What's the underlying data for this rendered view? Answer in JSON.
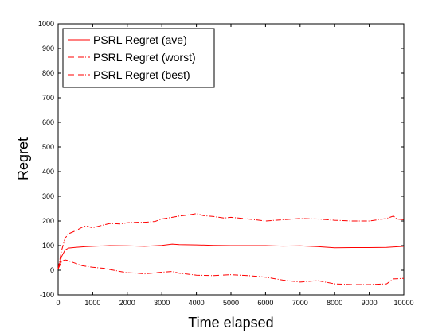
{
  "chart_data": {
    "type": "line",
    "title": "",
    "xlabel": "Time elapsed",
    "ylabel": "Regret",
    "xlim": [
      0,
      10000
    ],
    "ylim": [
      -100,
      1000
    ],
    "xticks": [
      0,
      1000,
      2000,
      3000,
      4000,
      5000,
      6000,
      7000,
      8000,
      9000,
      10000
    ],
    "yticks": [
      -100,
      0,
      100,
      200,
      300,
      400,
      500,
      600,
      700,
      800,
      900,
      1000
    ],
    "grid": false,
    "legend_position": "top-left",
    "series_color": "#ff0000",
    "series": [
      {
        "name": "PSRL Regret (ave)",
        "style": "solid",
        "x": [
          0,
          100,
          200,
          300,
          500,
          800,
          1000,
          1500,
          2000,
          2500,
          3000,
          3300,
          3500,
          4000,
          4500,
          5000,
          5500,
          6000,
          6500,
          7000,
          7500,
          8000,
          8500,
          9000,
          9500,
          10000
        ],
        "y": [
          5,
          55,
          82,
          90,
          93,
          96,
          97,
          100,
          99,
          97,
          101,
          106,
          104,
          103,
          101,
          100,
          100,
          100,
          98,
          99,
          96,
          91,
          92,
          92,
          93,
          97
        ]
      },
      {
        "name": "PSRL Regret (worst)",
        "style": "dashdot",
        "x": [
          0,
          100,
          200,
          300,
          500,
          700,
          800,
          1000,
          1200,
          1500,
          1800,
          2000,
          2300,
          2500,
          2800,
          3000,
          3300,
          3500,
          3800,
          4000,
          4200,
          4500,
          4800,
          5000,
          5500,
          6000,
          6500,
          7000,
          7500,
          8000,
          8500,
          9000,
          9500,
          9700,
          9800,
          10000
        ],
        "y": [
          5,
          80,
          130,
          148,
          160,
          175,
          180,
          172,
          180,
          190,
          188,
          193,
          195,
          195,
          198,
          208,
          215,
          220,
          225,
          230,
          222,
          218,
          212,
          215,
          208,
          200,
          205,
          210,
          208,
          203,
          200,
          200,
          210,
          220,
          208,
          205
        ]
      },
      {
        "name": "PSRL Regret (best)",
        "style": "dashdot",
        "x": [
          0,
          100,
          200,
          300,
          500,
          700,
          1000,
          1300,
          1500,
          1800,
          2000,
          2300,
          2500,
          3000,
          3300,
          3500,
          4000,
          4500,
          5000,
          5500,
          6000,
          6500,
          7000,
          7500,
          8000,
          8500,
          9000,
          9500,
          9700,
          10000
        ],
        "y": [
          5,
          35,
          42,
          38,
          28,
          18,
          12,
          8,
          3,
          -5,
          -10,
          -12,
          -15,
          -8,
          -5,
          -12,
          -20,
          -22,
          -18,
          -22,
          -28,
          -40,
          -48,
          -42,
          -55,
          -58,
          -58,
          -55,
          -35,
          -33
        ]
      }
    ]
  }
}
